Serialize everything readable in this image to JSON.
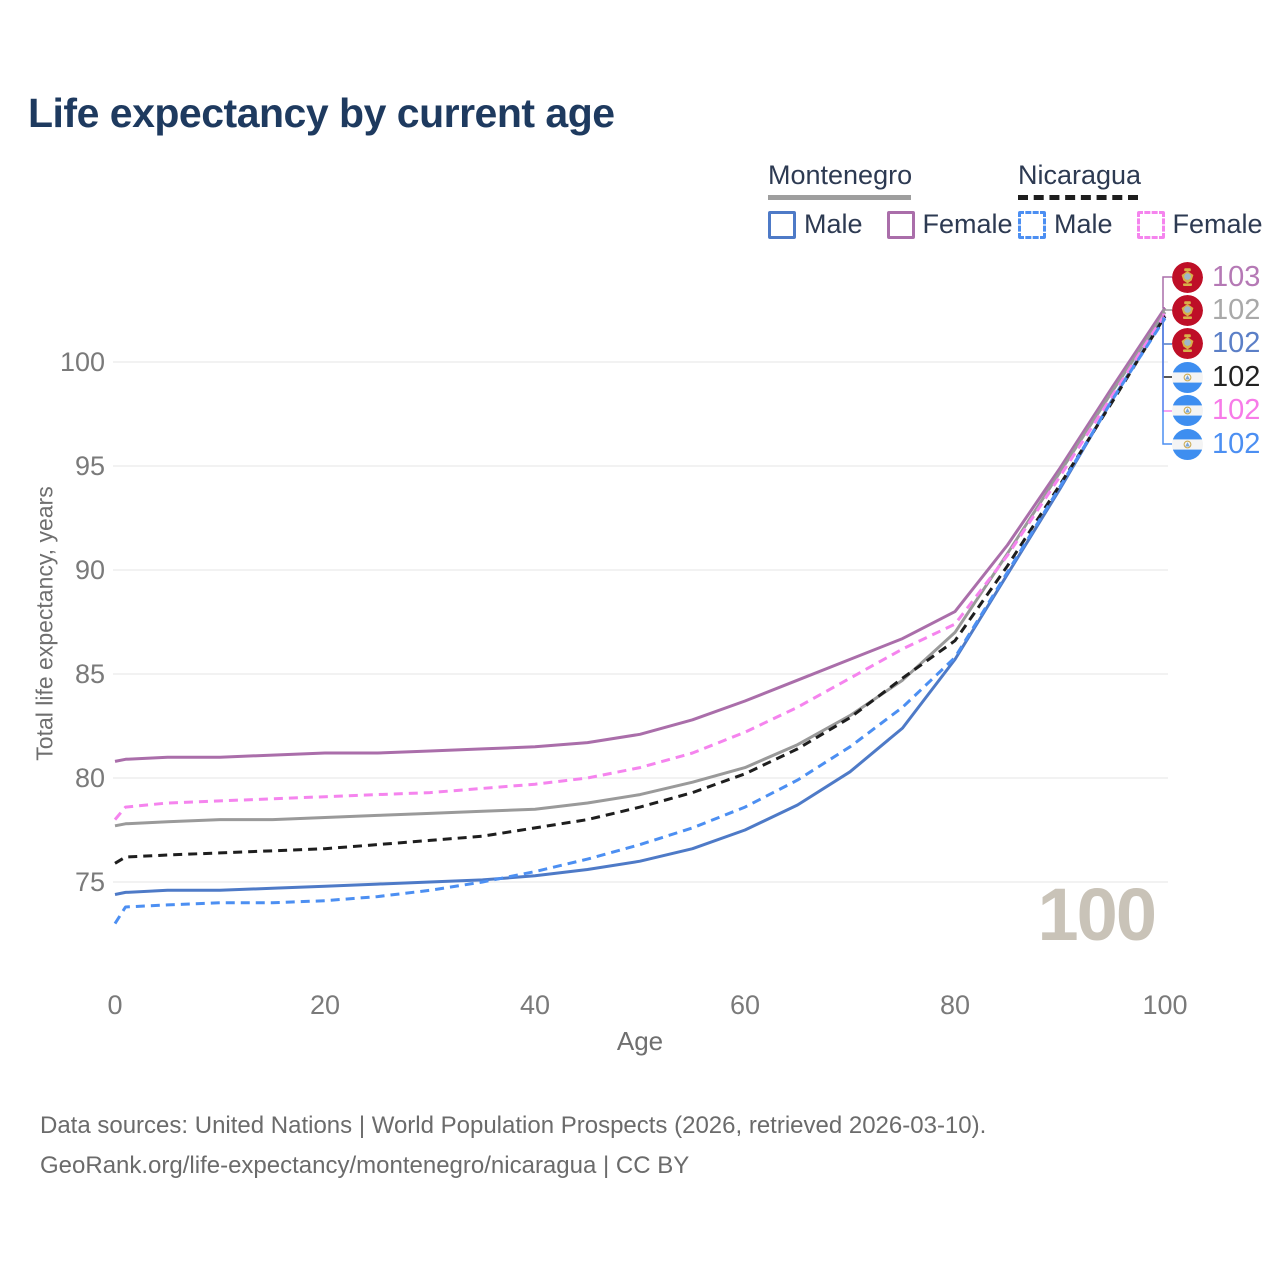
{
  "title": "Life expectancy by current age",
  "legend": {
    "montenegro": {
      "label": "Montenegro",
      "male": "Male",
      "female": "Female"
    },
    "nicaragua": {
      "label": "Nicaragua",
      "male": "Male",
      "female": "Female"
    }
  },
  "colors": {
    "title": "#1E3A5F",
    "montenegro_total_line": "#9A9A9A",
    "nicaragua_total_line": "#1E1E1E",
    "montenegro_male": "#4E7AC7",
    "montenegro_female": "#AA6EAA",
    "nicaragua_male": "#4C8FF2",
    "nicaragua_female": "#F584EE",
    "grid": "#E9E9E9",
    "tick_text": "#7A7A7A",
    "watermark": "#C9C3B8"
  },
  "chart_data": {
    "type": "line",
    "title": "Life expectancy by current age",
    "xlabel": "Age",
    "ylabel": "Total life expectancy, years",
    "x_ticks": [
      0,
      20,
      40,
      60,
      80,
      100
    ],
    "y_ticks": [
      75,
      80,
      85,
      90,
      95,
      100
    ],
    "xlim": [
      0,
      100
    ],
    "ylim": [
      72.5,
      103.5
    ],
    "grid": "horizontal",
    "legend_position": "top-right",
    "x": [
      0,
      1,
      5,
      10,
      15,
      20,
      25,
      30,
      35,
      40,
      45,
      50,
      55,
      60,
      65,
      70,
      75,
      80,
      85,
      90,
      95,
      100
    ],
    "series": [
      {
        "name": "Montenegro Female",
        "country": "Montenegro",
        "sex": "Female",
        "style": "solid",
        "color": "#AA6EAA",
        "end_label": "103",
        "values": [
          80.8,
          80.9,
          81.0,
          81.0,
          81.1,
          81.2,
          81.2,
          81.3,
          81.4,
          81.5,
          81.7,
          82.1,
          82.8,
          83.7,
          84.7,
          85.7,
          86.7,
          88.0,
          91.2,
          94.9,
          98.8,
          102.6
        ]
      },
      {
        "name": "Montenegro",
        "country": "Montenegro",
        "sex": "Both",
        "style": "solid",
        "color": "#9A9A9A",
        "end_label": "102",
        "values": [
          77.7,
          77.8,
          77.9,
          78.0,
          78.0,
          78.1,
          78.2,
          78.3,
          78.4,
          78.5,
          78.8,
          79.2,
          79.8,
          80.5,
          81.6,
          83.0,
          84.7,
          87.0,
          90.8,
          94.7,
          98.6,
          102.4
        ]
      },
      {
        "name": "Montenegro Male",
        "country": "Montenegro",
        "sex": "Male",
        "style": "solid",
        "color": "#4E7AC7",
        "end_label": "102",
        "values": [
          74.4,
          74.5,
          74.6,
          74.6,
          74.7,
          74.8,
          74.9,
          75.0,
          75.1,
          75.3,
          75.6,
          76.0,
          76.6,
          77.5,
          78.7,
          80.3,
          82.4,
          85.7,
          89.8,
          93.9,
          98.2,
          102.2
        ]
      },
      {
        "name": "Nicaragua",
        "country": "Nicaragua",
        "sex": "Both",
        "style": "dashed",
        "color": "#1E1E1E",
        "end_label": "102",
        "values": [
          75.9,
          76.2,
          76.3,
          76.4,
          76.5,
          76.6,
          76.8,
          77.0,
          77.2,
          77.6,
          78.0,
          78.6,
          79.3,
          80.2,
          81.4,
          82.9,
          84.8,
          86.6,
          90.2,
          94.1,
          98.1,
          102.2
        ]
      },
      {
        "name": "Nicaragua Female",
        "country": "Nicaragua",
        "sex": "Female",
        "style": "dashed",
        "color": "#F584EE",
        "end_label": "102",
        "values": [
          78.0,
          78.6,
          78.8,
          78.9,
          79.0,
          79.1,
          79.2,
          79.3,
          79.5,
          79.7,
          80.0,
          80.5,
          81.2,
          82.2,
          83.4,
          84.8,
          86.2,
          87.4,
          90.7,
          94.5,
          98.4,
          102.3
        ]
      },
      {
        "name": "Nicaragua Male",
        "country": "Nicaragua",
        "sex": "Male",
        "style": "dashed",
        "color": "#4C8FF2",
        "end_label": "102",
        "values": [
          73.0,
          73.8,
          73.9,
          74.0,
          74.0,
          74.1,
          74.3,
          74.6,
          75.0,
          75.5,
          76.1,
          76.8,
          77.6,
          78.6,
          79.9,
          81.5,
          83.4,
          85.8,
          89.9,
          94.0,
          98.2,
          102.1
        ]
      }
    ]
  },
  "end_labels": [
    {
      "flag": "montenegro",
      "value": "103",
      "color": "#B579B5"
    },
    {
      "flag": "montenegro",
      "value": "102",
      "color": "#A9A9A9"
    },
    {
      "flag": "montenegro",
      "value": "102",
      "color": "#5B7FC7"
    },
    {
      "flag": "nicaragua",
      "value": "102",
      "color": "#222222"
    },
    {
      "flag": "nicaragua",
      "value": "102",
      "color": "#F77BE8"
    },
    {
      "flag": "nicaragua",
      "value": "102",
      "color": "#4C8FF2"
    }
  ],
  "age_marker": "100",
  "footer": {
    "line1": "Data sources: United Nations | World Population Prospects (2026, retrieved 2026-03-10).",
    "line2": "GeoRank.org/life-expectancy/montenegro/nicaragua | CC BY"
  }
}
